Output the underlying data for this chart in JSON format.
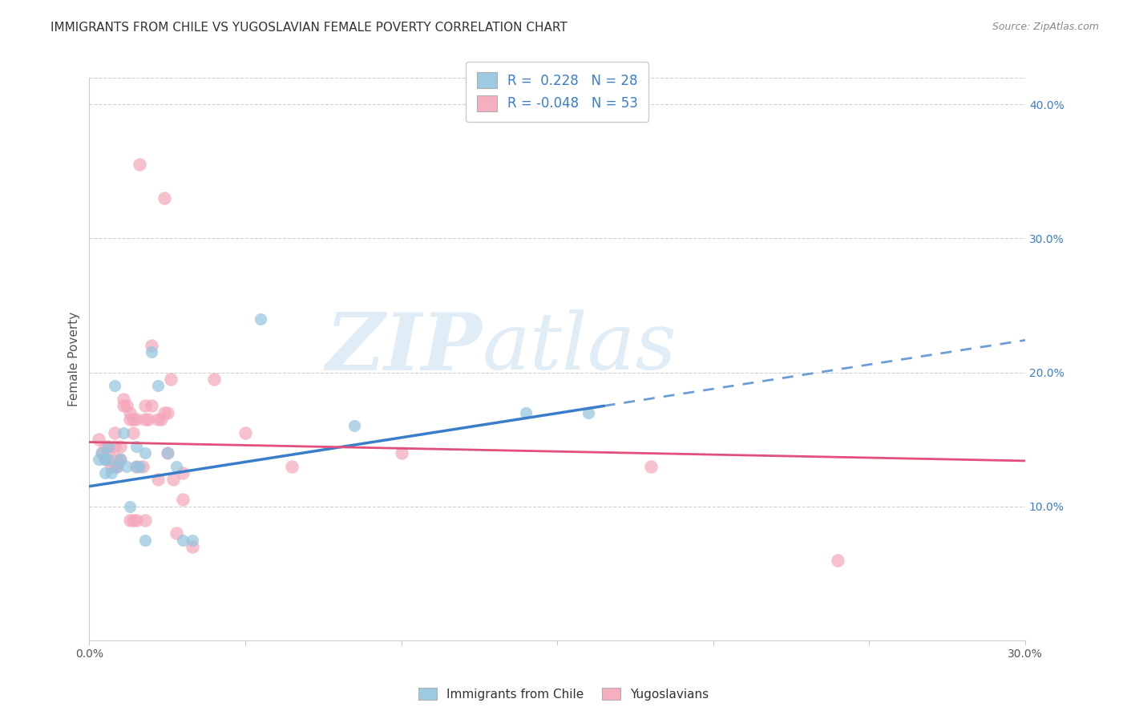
{
  "title": "IMMIGRANTS FROM CHILE VS YUGOSLAVIAN FEMALE POVERTY CORRELATION CHART",
  "source": "Source: ZipAtlas.com",
  "ylabel": "Female Poverty",
  "xlim": [
    0.0,
    0.3
  ],
  "ylim": [
    0.0,
    0.42
  ],
  "xticks": [
    0.0,
    0.05,
    0.1,
    0.15,
    0.2,
    0.25,
    0.3
  ],
  "xticklabels": [
    "0.0%",
    "",
    "",
    "",
    "",
    "",
    "30.0%"
  ],
  "yticks_right": [
    0.1,
    0.2,
    0.3,
    0.4
  ],
  "ytick_right_labels": [
    "10.0%",
    "20.0%",
    "30.0%",
    "40.0%"
  ],
  "watermark": "ZIPatlas",
  "legend_r1": "R =  0.228   N = 28",
  "legend_r2": "R = -0.048   N = 53",
  "legend_label1": "Immigrants from Chile",
  "legend_label2": "Yugoslavians",
  "color_chile": "#92c5de",
  "color_yugo": "#f4a6b8",
  "chile_scatter": [
    [
      0.003,
      0.135
    ],
    [
      0.004,
      0.14
    ],
    [
      0.005,
      0.125
    ],
    [
      0.005,
      0.135
    ],
    [
      0.006,
      0.145
    ],
    [
      0.006,
      0.135
    ],
    [
      0.007,
      0.125
    ],
    [
      0.008,
      0.19
    ],
    [
      0.009,
      0.13
    ],
    [
      0.01,
      0.135
    ],
    [
      0.011,
      0.155
    ],
    [
      0.012,
      0.13
    ],
    [
      0.013,
      0.1
    ],
    [
      0.015,
      0.145
    ],
    [
      0.015,
      0.13
    ],
    [
      0.016,
      0.13
    ],
    [
      0.018,
      0.14
    ],
    [
      0.018,
      0.075
    ],
    [
      0.02,
      0.215
    ],
    [
      0.022,
      0.19
    ],
    [
      0.025,
      0.14
    ],
    [
      0.028,
      0.13
    ],
    [
      0.03,
      0.075
    ],
    [
      0.033,
      0.075
    ],
    [
      0.055,
      0.24
    ],
    [
      0.085,
      0.16
    ],
    [
      0.14,
      0.17
    ],
    [
      0.16,
      0.17
    ]
  ],
  "yugo_scatter": [
    [
      0.003,
      0.15
    ],
    [
      0.004,
      0.14
    ],
    [
      0.005,
      0.145
    ],
    [
      0.005,
      0.135
    ],
    [
      0.006,
      0.145
    ],
    [
      0.006,
      0.14
    ],
    [
      0.007,
      0.13
    ],
    [
      0.008,
      0.155
    ],
    [
      0.008,
      0.145
    ],
    [
      0.008,
      0.13
    ],
    [
      0.009,
      0.135
    ],
    [
      0.009,
      0.13
    ],
    [
      0.01,
      0.145
    ],
    [
      0.01,
      0.135
    ],
    [
      0.011,
      0.18
    ],
    [
      0.011,
      0.175
    ],
    [
      0.012,
      0.175
    ],
    [
      0.013,
      0.17
    ],
    [
      0.013,
      0.165
    ],
    [
      0.013,
      0.09
    ],
    [
      0.014,
      0.165
    ],
    [
      0.014,
      0.155
    ],
    [
      0.014,
      0.09
    ],
    [
      0.015,
      0.165
    ],
    [
      0.015,
      0.13
    ],
    [
      0.015,
      0.09
    ],
    [
      0.016,
      0.355
    ],
    [
      0.017,
      0.13
    ],
    [
      0.018,
      0.175
    ],
    [
      0.018,
      0.165
    ],
    [
      0.018,
      0.09
    ],
    [
      0.019,
      0.165
    ],
    [
      0.02,
      0.22
    ],
    [
      0.02,
      0.175
    ],
    [
      0.022,
      0.165
    ],
    [
      0.022,
      0.12
    ],
    [
      0.023,
      0.165
    ],
    [
      0.024,
      0.33
    ],
    [
      0.024,
      0.17
    ],
    [
      0.025,
      0.17
    ],
    [
      0.025,
      0.14
    ],
    [
      0.026,
      0.195
    ],
    [
      0.027,
      0.12
    ],
    [
      0.028,
      0.08
    ],
    [
      0.03,
      0.125
    ],
    [
      0.03,
      0.105
    ],
    [
      0.033,
      0.07
    ],
    [
      0.04,
      0.195
    ],
    [
      0.05,
      0.155
    ],
    [
      0.065,
      0.13
    ],
    [
      0.1,
      0.14
    ],
    [
      0.18,
      0.13
    ],
    [
      0.24,
      0.06
    ]
  ],
  "chile_line_solid": [
    [
      0.0,
      0.115
    ],
    [
      0.165,
      0.175
    ]
  ],
  "chile_line_dashed": [
    [
      0.165,
      0.175
    ],
    [
      0.3,
      0.224
    ]
  ],
  "yugo_line": [
    [
      0.0,
      0.148
    ],
    [
      0.3,
      0.134
    ]
  ],
  "grid_color": "#d0d0d0",
  "bg_color": "#ffffff",
  "title_fontsize": 11,
  "axis_fontsize": 10,
  "marker_size": 100,
  "line_color_chile": "#3a7dc9",
  "line_color_yugo": "#e0507a",
  "legend_text_color": "#3a7dc9"
}
